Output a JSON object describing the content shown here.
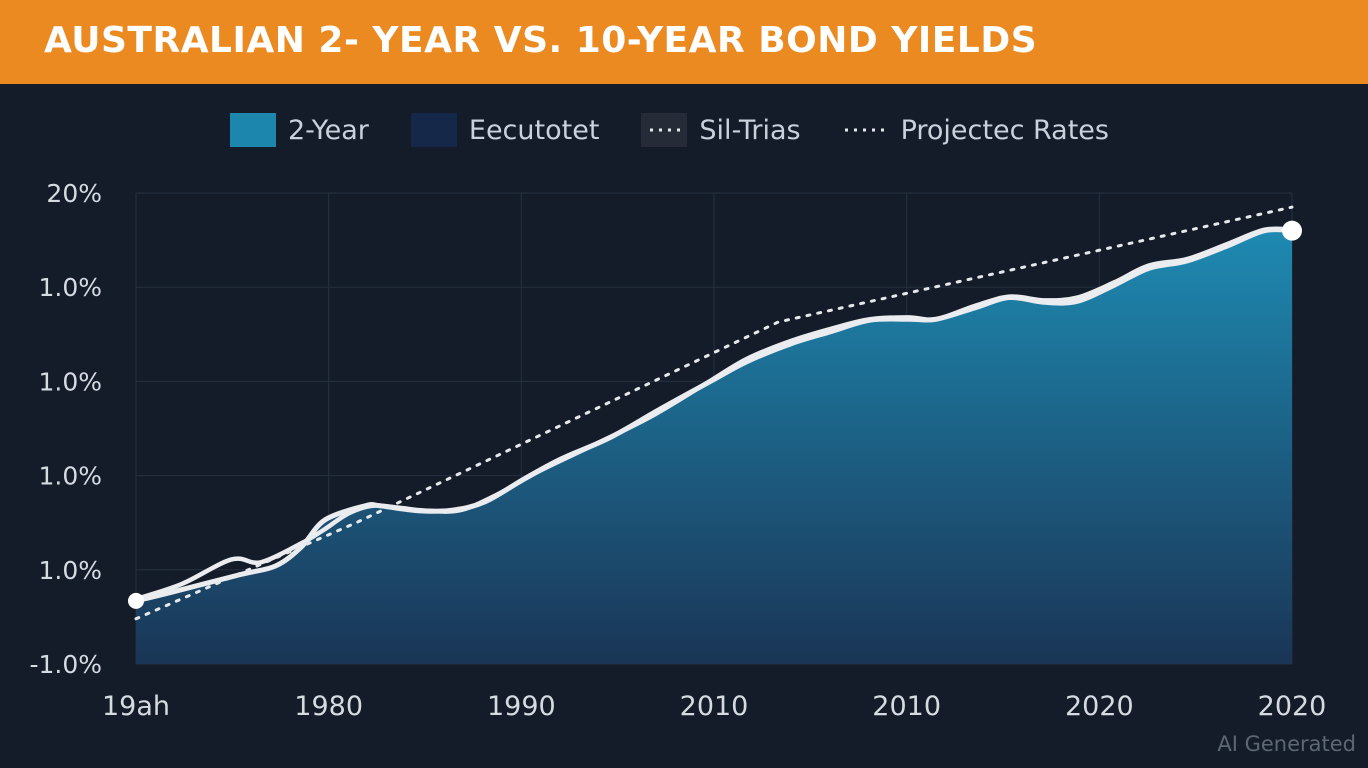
{
  "header": {
    "title": "AUSTRALIAN 2- YEAR VS. 10-YEAR BOND YIELDS"
  },
  "legend": {
    "items": [
      {
        "label": "2-Year",
        "kind": "swatch",
        "color": "#1d86ad"
      },
      {
        "label": "Eecutotet",
        "kind": "swatch",
        "color": "#16284a"
      },
      {
        "label": "Sil-Trias",
        "kind": "dotted-box"
      },
      {
        "label": "Projectec Rates",
        "kind": "dotted"
      }
    ]
  },
  "watermark": "AI Generated",
  "chart_data": {
    "type": "area",
    "title": "AUSTRALIAN 2- YEAR VS. 10-YEAR BOND YIELDS",
    "y_tick_labels": [
      "20%",
      "1.0%",
      "1.0%",
      "1.0%",
      "1.0%",
      "-1.0%"
    ],
    "x_tick_labels": [
      "19ah",
      "1980",
      "1990",
      "2010",
      "2010",
      "2020",
      "2020"
    ],
    "x_range": [
      0,
      6.3
    ],
    "y_range": [
      0,
      5
    ],
    "grid": true,
    "legend_position": "top",
    "colors": {
      "area_top": "#1e8ab2",
      "area_bottom": "#1a3556",
      "line": "#eaecef",
      "dotted": "#e6e9ec",
      "grid": "#243041",
      "axis_text": "#d6dbe1"
    },
    "series": [
      {
        "name": "2-Year",
        "style": "area",
        "x": [
          0,
          0.19,
          0.57,
          0.76,
          0.9,
          1.03,
          1.25,
          1.33,
          1.52,
          1.71,
          1.9,
          2.12,
          2.32,
          2.58,
          2.86,
          3.14,
          3.33,
          3.57,
          3.79,
          4.0,
          4.21,
          4.36,
          4.57,
          4.76,
          4.95,
          5.13,
          5.33,
          5.52,
          5.73,
          5.95,
          6.15,
          6.3
        ],
        "y": [
          0.67,
          0.76,
          0.95,
          1.04,
          1.24,
          1.53,
          1.68,
          1.68,
          1.63,
          1.63,
          1.72,
          1.97,
          2.18,
          2.4,
          2.71,
          3.01,
          3.21,
          3.4,
          3.53,
          3.65,
          3.66,
          3.66,
          3.78,
          3.89,
          3.84,
          3.85,
          4.02,
          4.2,
          4.28,
          4.44,
          4.6,
          4.6
        ]
      },
      {
        "name": "Eecutotet",
        "style": "line",
        "x": [
          0,
          0.25,
          0.52,
          0.68,
          0.9,
          1.02,
          1.16,
          1.29,
          1.43,
          1.57,
          1.76,
          1.95,
          2.2,
          2.5,
          2.8,
          3.1,
          3.33,
          3.57,
          3.79,
          4.0,
          4.21,
          4.36,
          4.57,
          4.76,
          4.95,
          5.13,
          5.33,
          5.52,
          5.73,
          5.95,
          6.15,
          6.3
        ],
        "y": [
          0.69,
          0.85,
          1.11,
          1.08,
          1.28,
          1.42,
          1.6,
          1.68,
          1.66,
          1.63,
          1.63,
          1.78,
          2.05,
          2.33,
          2.62,
          2.97,
          3.24,
          3.43,
          3.56,
          3.66,
          3.68,
          3.66,
          3.8,
          3.9,
          3.86,
          3.89,
          4.05,
          4.23,
          4.3,
          4.46,
          4.61,
          4.61
        ]
      },
      {
        "name": "Projectec Rates",
        "style": "dotted",
        "x": [
          0,
          1.2,
          3.5,
          6.3
        ],
        "y": [
          0.48,
          1.5,
          3.63,
          4.85
        ]
      }
    ]
  }
}
